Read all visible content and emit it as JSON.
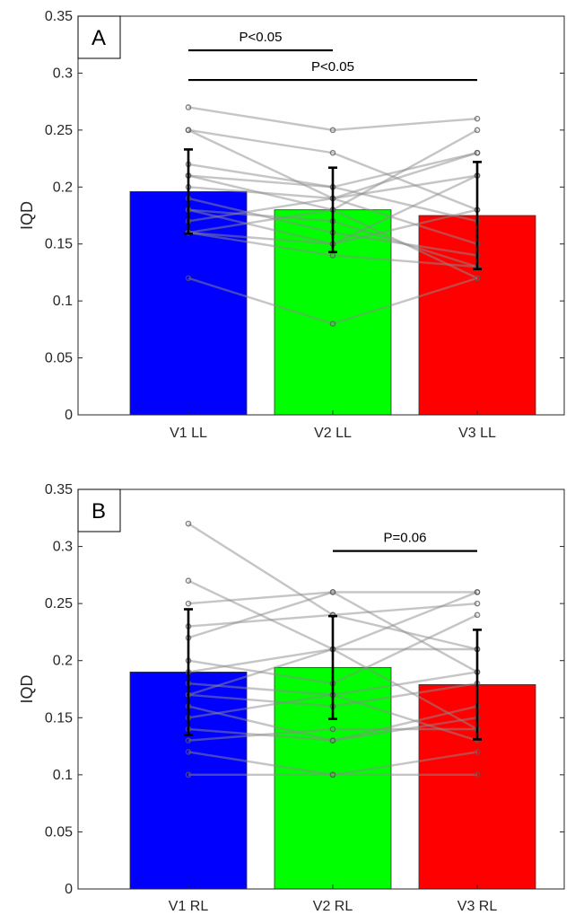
{
  "chart_data": [
    {
      "type": "bar",
      "panel_label": "A",
      "ylabel": "IQD",
      "ylim": [
        0,
        0.35
      ],
      "yticks": [
        "0",
        "0.05",
        "0.1",
        "0.15",
        "0.2",
        "0.25",
        "0.3",
        "0.35"
      ],
      "categories": [
        "V1 LL",
        "V2 LL",
        "V3 LL"
      ],
      "values": [
        0.196,
        0.18,
        0.175
      ],
      "errors": [
        0.037,
        0.037,
        0.047
      ],
      "colors": [
        "#0000ff",
        "#00ff00",
        "#ff0000"
      ],
      "subjects": [
        [
          0.27,
          0.25,
          0.26
        ],
        [
          0.25,
          0.19,
          0.23
        ],
        [
          0.25,
          0.23,
          0.18
        ],
        [
          0.22,
          0.2,
          0.23
        ],
        [
          0.21,
          0.18,
          0.25
        ],
        [
          0.21,
          0.2,
          0.17
        ],
        [
          0.2,
          0.19,
          0.21
        ],
        [
          0.19,
          0.16,
          0.14
        ],
        [
          0.18,
          0.17,
          0.13
        ],
        [
          0.18,
          0.15,
          0.18
        ],
        [
          0.17,
          0.19,
          0.15
        ],
        [
          0.16,
          0.14,
          0.13
        ],
        [
          0.16,
          0.18,
          0.12
        ],
        [
          0.16,
          0.15,
          0.21
        ],
        [
          0.12,
          0.08,
          0.12
        ]
      ],
      "annotations": [
        {
          "text": "P<0.05",
          "from": 0,
          "to": 1,
          "y": 0.32
        },
        {
          "text": "P<0.05",
          "from": 0,
          "to": 2,
          "y": 0.294
        }
      ]
    },
    {
      "type": "bar",
      "panel_label": "B",
      "ylabel": "IQD",
      "ylim": [
        0,
        0.35
      ],
      "yticks": [
        "0",
        "0.05",
        "0.1",
        "0.15",
        "0.2",
        "0.25",
        "0.3",
        "0.35"
      ],
      "categories": [
        "V1 RL",
        "V2 RL",
        "V3 RL"
      ],
      "values": [
        0.19,
        0.194,
        0.179
      ],
      "errors": [
        0.055,
        0.045,
        0.048
      ],
      "colors": [
        "#0000ff",
        "#00ff00",
        "#ff0000"
      ],
      "subjects": [
        [
          0.32,
          0.24,
          0.21
        ],
        [
          0.27,
          0.21,
          0.26
        ],
        [
          0.25,
          0.26,
          0.26
        ],
        [
          0.23,
          0.24,
          0.25
        ],
        [
          0.22,
          0.26,
          0.19
        ],
        [
          0.2,
          0.18,
          0.24
        ],
        [
          0.19,
          0.21,
          0.21
        ],
        [
          0.18,
          0.17,
          0.19
        ],
        [
          0.17,
          0.16,
          0.18
        ],
        [
          0.17,
          0.21,
          0.14
        ],
        [
          0.16,
          0.13,
          0.16
        ],
        [
          0.15,
          0.17,
          0.13
        ],
        [
          0.14,
          0.13,
          0.15
        ],
        [
          0.13,
          0.14,
          0.14
        ],
        [
          0.12,
          0.1,
          0.12
        ],
        [
          0.1,
          0.1,
          0.1
        ]
      ],
      "annotations": [
        {
          "text": "P=0.06",
          "from": 1,
          "to": 2,
          "y": 0.296
        }
      ]
    }
  ]
}
